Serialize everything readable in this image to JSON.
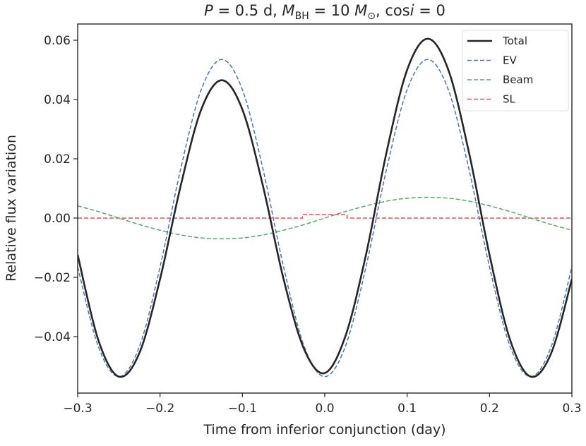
{
  "chart_data": {
    "type": "line",
    "title_parts": {
      "p": "P",
      "eq1": " = 0.5 d, ",
      "m": "M",
      "sub": "BH",
      "eq2": " = 10 ",
      "m2": "M",
      "sun": "⊙",
      "eq3": ", cos",
      "i": "i",
      "eq4": " = 0"
    },
    "title": "P = 0.5 d, M_BH = 10 M_sun, cos i = 0",
    "xlabel": "Time from inferior conjunction (day)",
    "ylabel": "Relative flux variation",
    "xlim": [
      -0.3,
      0.3
    ],
    "ylim": [
      -0.059,
      0.0688
    ],
    "xticks": [
      -0.3,
      -0.2,
      -0.1,
      0.0,
      0.1,
      0.2,
      0.3
    ],
    "xtick_labels": [
      "−0.3",
      "−0.2",
      "−0.1",
      "0.0",
      "0.1",
      "0.2",
      "0.3"
    ],
    "yticks": [
      -0.04,
      -0.02,
      0.0,
      0.02,
      0.04,
      0.06
    ],
    "ytick_labels": [
      "−0.04",
      "−0.02",
      "0.00",
      "0.02",
      "0.04",
      "0.06"
    ],
    "legend_position": "top-right",
    "x": [
      -0.3,
      -0.275,
      -0.25,
      -0.225,
      -0.2,
      -0.175,
      -0.15,
      -0.125,
      -0.1,
      -0.075,
      -0.05,
      -0.025,
      0,
      0.025,
      0.05,
      0.075,
      0.1,
      0.125,
      0.15,
      0.175,
      0.2,
      0.225,
      0.25,
      0.275,
      0.3
    ],
    "series": [
      {
        "name": "Total",
        "color": "#262626",
        "style": "solid",
        "values": [
          -0.0124,
          -0.0411,
          -0.0535,
          -0.0455,
          -0.0206,
          0.0108,
          0.0366,
          0.0465,
          0.0366,
          0.0108,
          -0.0206,
          -0.0443,
          -0.0523,
          -0.0399,
          -0.0124,
          0.0222,
          0.05,
          0.0605,
          0.05,
          0.0222,
          -0.0124,
          -0.0411,
          -0.0535,
          -0.0455,
          -0.0206
        ]
      },
      {
        "name": "EV",
        "color": "#4c72b0",
        "style": "dashed",
        "values": [
          -0.0165,
          -0.0433,
          -0.0535,
          -0.0433,
          -0.0165,
          0.0165,
          0.0433,
          0.0535,
          0.0433,
          0.0165,
          -0.0165,
          -0.0433,
          -0.0535,
          -0.0433,
          -0.0165,
          0.0165,
          0.0433,
          0.0535,
          0.0433,
          0.0165,
          -0.0165,
          -0.0433,
          -0.0535,
          -0.0433,
          -0.0165
        ]
      },
      {
        "name": "Beam",
        "color": "#55a868",
        "style": "dashed",
        "values": [
          0.0041,
          0.0022,
          0,
          -0.0022,
          -0.0041,
          -0.0057,
          -0.0067,
          -0.007,
          -0.0067,
          -0.0057,
          -0.0041,
          -0.0022,
          0,
          0.0022,
          0.0041,
          0.0057,
          0.0067,
          0.007,
          0.0067,
          0.0057,
          0.0041,
          0.0022,
          0,
          -0.0022,
          -0.0041
        ]
      },
      {
        "name": "SL",
        "color": "#dd5555",
        "style": "dashed",
        "step": true,
        "x": [
          -0.3,
          -0.027,
          -0.027,
          0.027,
          0.027,
          0.3
        ],
        "values": [
          0,
          0,
          0.0012,
          0.0012,
          0,
          0
        ]
      }
    ]
  }
}
